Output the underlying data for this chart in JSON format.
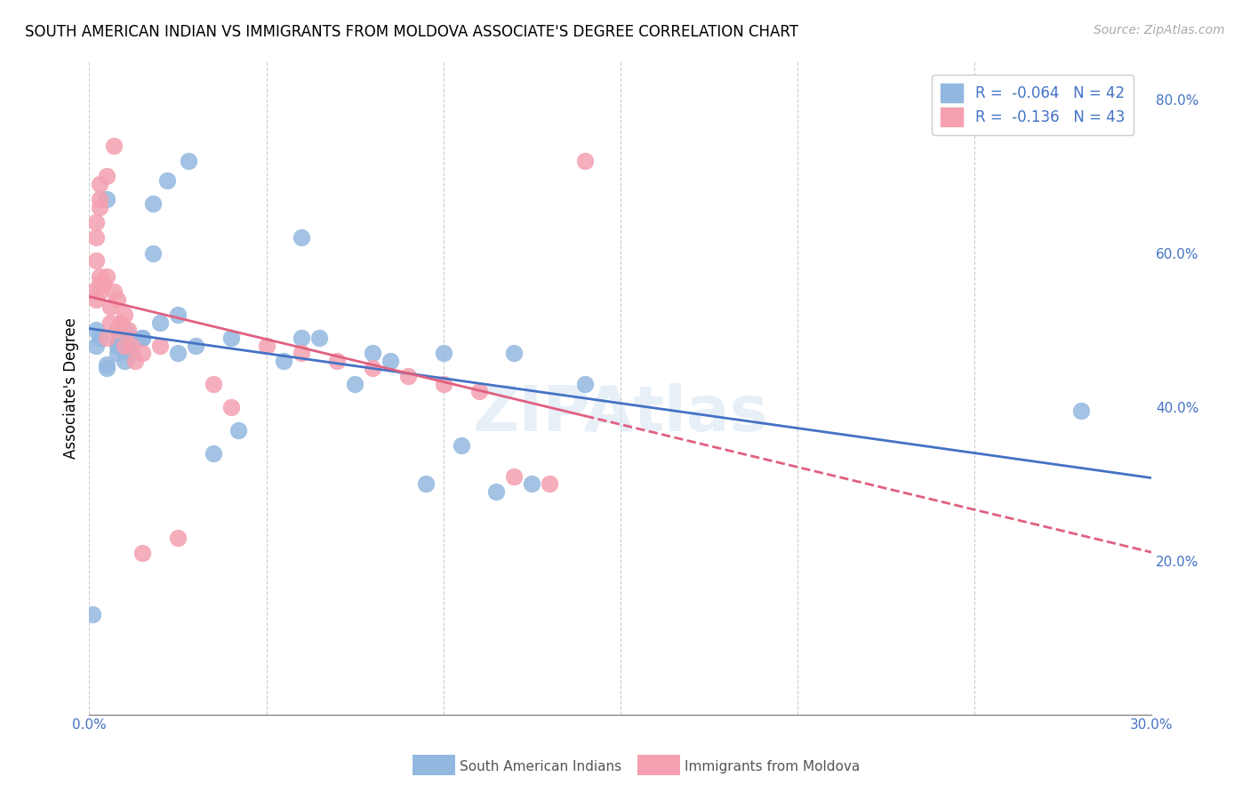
{
  "title": "SOUTH AMERICAN INDIAN VS IMMIGRANTS FROM MOLDOVA ASSOCIATE'S DEGREE CORRELATION CHART",
  "source": "Source: ZipAtlas.com",
  "ylabel": "Associate's Degree",
  "x_min": 0.0,
  "x_max": 0.3,
  "y_min": 0.0,
  "y_max": 0.85,
  "x_ticks": [
    0.0,
    0.05,
    0.1,
    0.15,
    0.2,
    0.25,
    0.3
  ],
  "x_tick_labels": [
    "0.0%",
    "",
    "",
    "",
    "",
    "",
    "30.0%"
  ],
  "y_ticks": [
    0.0,
    0.2,
    0.4,
    0.6,
    0.8
  ],
  "y_tick_labels": [
    "",
    "20.0%",
    "40.0%",
    "60.0%",
    "80.0%"
  ],
  "legend1_label": "R =  -0.064   N = 42",
  "legend2_label": "R =  -0.136   N = 43",
  "series1_color": "#93b8e0",
  "series2_color": "#f4a0b0",
  "trendline1_color": "#4472c4",
  "trendline2_color": "#e06080",
  "watermark": "ZIPAtlas",
  "legend_label1": "South American Indians",
  "legend_label2": "Immigrants from Moldova",
  "blue_x": [
    0.001,
    0.018,
    0.005,
    0.022,
    0.028,
    0.018,
    0.025,
    0.03,
    0.06,
    0.02,
    0.005,
    0.008,
    0.01,
    0.012,
    0.015,
    0.002,
    0.005,
    0.008,
    0.01,
    0.012,
    0.002,
    0.003,
    0.015,
    0.025,
    0.04,
    0.06,
    0.08,
    0.1,
    0.12,
    0.14,
    0.035,
    0.042,
    0.055,
    0.065,
    0.075,
    0.085,
    0.095,
    0.105,
    0.115,
    0.125,
    0.28,
    0.008
  ],
  "blue_y": [
    0.13,
    0.665,
    0.67,
    0.695,
    0.72,
    0.6,
    0.47,
    0.48,
    0.62,
    0.51,
    0.45,
    0.48,
    0.46,
    0.49,
    0.49,
    0.5,
    0.455,
    0.47,
    0.5,
    0.47,
    0.48,
    0.49,
    0.49,
    0.52,
    0.49,
    0.49,
    0.47,
    0.47,
    0.47,
    0.43,
    0.34,
    0.37,
    0.46,
    0.49,
    0.43,
    0.46,
    0.3,
    0.35,
    0.29,
    0.3,
    0.395,
    0.485
  ],
  "pink_x": [
    0.001,
    0.003,
    0.005,
    0.006,
    0.007,
    0.008,
    0.009,
    0.01,
    0.011,
    0.012,
    0.002,
    0.003,
    0.003,
    0.004,
    0.005,
    0.006,
    0.008,
    0.01,
    0.013,
    0.015,
    0.002,
    0.002,
    0.002,
    0.003,
    0.003,
    0.003,
    0.005,
    0.007,
    0.02,
    0.035,
    0.04,
    0.05,
    0.06,
    0.07,
    0.08,
    0.09,
    0.1,
    0.11,
    0.12,
    0.13,
    0.015,
    0.025,
    0.14
  ],
  "pink_y": [
    0.55,
    0.56,
    0.57,
    0.53,
    0.55,
    0.54,
    0.51,
    0.52,
    0.5,
    0.48,
    0.54,
    0.55,
    0.57,
    0.56,
    0.49,
    0.51,
    0.5,
    0.48,
    0.46,
    0.47,
    0.59,
    0.62,
    0.64,
    0.66,
    0.67,
    0.69,
    0.7,
    0.74,
    0.48,
    0.43,
    0.4,
    0.48,
    0.47,
    0.46,
    0.45,
    0.44,
    0.43,
    0.42,
    0.31,
    0.3,
    0.21,
    0.23,
    0.72
  ]
}
